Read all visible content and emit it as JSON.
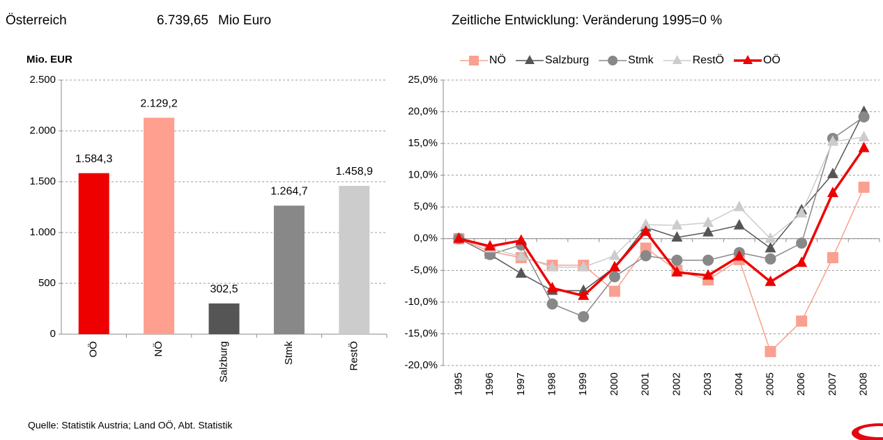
{
  "header": {
    "region": "Österreich",
    "total": "6.739,65",
    "unit": "Mio Euro"
  },
  "footer": "Quelle: Statistik Austria; Land OÖ, Abt. Statistik",
  "chart_data": [
    {
      "type": "bar",
      "y_label": "Mio. EUR",
      "categories": [
        "OÖ",
        "NÖ",
        "Salzburg",
        "Stmk",
        "RestÖ"
      ],
      "values": [
        1584.3,
        2129.2,
        302.5,
        1264.7,
        1458.9
      ],
      "value_labels": [
        "1.584,3",
        "2.129,2",
        "302,5",
        "1.264,7",
        "1.458,9"
      ],
      "colors": [
        "#ee0000",
        "#ff9f8f",
        "#555555",
        "#888888",
        "#cccccc"
      ],
      "ylim": [
        0,
        2500
      ],
      "yticks": [
        0,
        500,
        {
          "value": 1000,
          "label": "1.000"
        },
        {
          "value": 1500,
          "label": "1.500"
        },
        {
          "value": 2000,
          "label": "2.000"
        },
        {
          "value": 2500,
          "label": "2.500"
        }
      ],
      "grid": true
    },
    {
      "type": "line",
      "title": "Zeitliche Entwicklung: Veränderung 1995=0 %",
      "categories": [
        "1995",
        "1996",
        "1997",
        "1998",
        "1999",
        "2000",
        "2001",
        "2002",
        "2003",
        "2004",
        "2005",
        "2006",
        "2007",
        "2008"
      ],
      "series": [
        {
          "name": "NÖ",
          "color": "#f9a090",
          "marker": "square",
          "line_width": 1.5,
          "values": [
            0,
            -2.0,
            -3.0,
            -4.2,
            -4.2,
            -8.3,
            -1.5,
            -5.0,
            -6.5,
            -3.3,
            -17.8,
            -13.0,
            -3.0,
            8.1
          ]
        },
        {
          "name": "Salzburg",
          "color": "#555555",
          "marker": "triangle",
          "line_width": 1.5,
          "values": [
            0,
            -2.5,
            -5.5,
            -8.2,
            -8.2,
            -4.5,
            1.8,
            0.2,
            1.0,
            2.1,
            -1.5,
            4.5,
            10.2,
            20.0
          ]
        },
        {
          "name": "Stmk",
          "color": "#888888",
          "marker": "circle",
          "line_width": 1.5,
          "values": [
            0,
            -2.5,
            -1.0,
            -10.3,
            -12.3,
            -6.0,
            -2.7,
            -3.4,
            -3.4,
            -2.2,
            -3.2,
            -0.7,
            15.8,
            19.2
          ]
        },
        {
          "name": "RestÖ",
          "color": "#cccccc",
          "marker": "triangle",
          "line_width": 1.5,
          "values": [
            0,
            -1.5,
            -2.8,
            -4.5,
            -4.5,
            -2.7,
            2.2,
            2.1,
            2.5,
            5.0,
            0.0,
            4.0,
            15.3,
            16.0
          ]
        },
        {
          "name": "OÖ",
          "color": "#ee0000",
          "marker": "triangle",
          "line_width": 3.5,
          "values": [
            0,
            -1.2,
            -0.3,
            -7.8,
            -9.0,
            -4.5,
            1.1,
            -5.3,
            -5.8,
            -2.8,
            -6.8,
            -3.8,
            7.2,
            14.3
          ]
        }
      ],
      "ylim": [
        -20,
        25
      ],
      "yticks": [
        {
          "value": -20,
          "label": "-20,0%"
        },
        {
          "value": -15,
          "label": "-15,0%"
        },
        {
          "value": -10,
          "label": "-10,0%"
        },
        {
          "value": -5,
          "label": "-5,0%"
        },
        {
          "value": 0,
          "label": "0,0%"
        },
        {
          "value": 5,
          "label": "5,0%"
        },
        {
          "value": 10,
          "label": "10,0%"
        },
        {
          "value": 15,
          "label": "15,0%"
        },
        {
          "value": 20,
          "label": "20,0%"
        },
        {
          "value": 25,
          "label": "25,0%"
        }
      ],
      "grid": true,
      "legend": "top"
    }
  ]
}
